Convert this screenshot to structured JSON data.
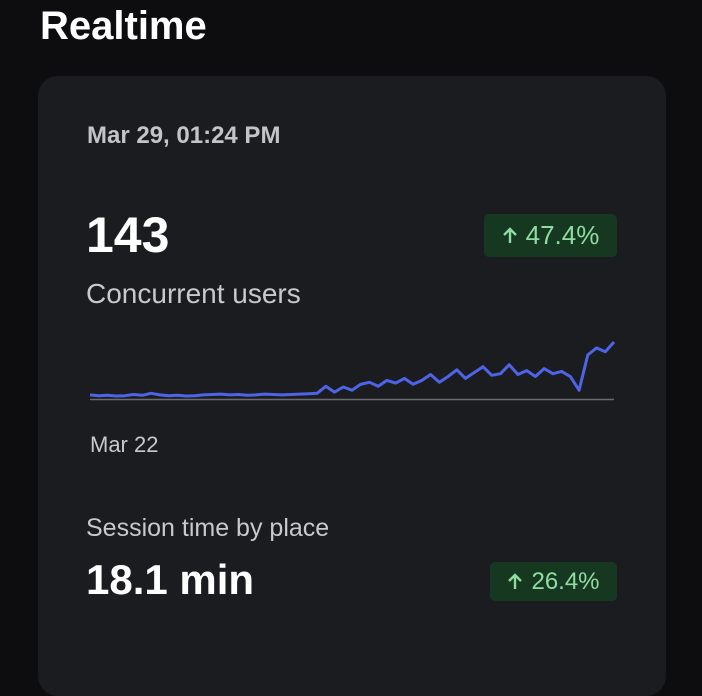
{
  "title": "Realtime",
  "card": {
    "timestamp": "Mar 29, 01:24 PM",
    "metrics": [
      {
        "value": "143",
        "label": "Concurrent users",
        "change": "47.4%"
      },
      {
        "value": "18.1 min",
        "label": "Session time by place",
        "change": "26.4%"
      }
    ]
  },
  "chart_data": {
    "type": "line",
    "color": "#4f63e6",
    "categories": [
      "Mar 22",
      null,
      null,
      null,
      null,
      null,
      null,
      null,
      null,
      null,
      null,
      null,
      null,
      null,
      null,
      null,
      null,
      null,
      null,
      null,
      null,
      null,
      null,
      null,
      null,
      null,
      null,
      null,
      null,
      null,
      null,
      null,
      null,
      null,
      null,
      null,
      null,
      null,
      null,
      null,
      null,
      null,
      null,
      null,
      null,
      null,
      null,
      null,
      null,
      null,
      null,
      null,
      null,
      null,
      null,
      null,
      null,
      null,
      null,
      null,
      null
    ],
    "values": [
      8,
      6,
      7,
      5,
      6,
      9,
      7,
      12,
      8,
      6,
      7,
      5,
      6,
      8,
      9,
      10,
      8,
      9,
      7,
      8,
      10,
      9,
      8,
      9,
      10,
      11,
      12,
      30,
      15,
      28,
      20,
      35,
      40,
      30,
      45,
      38,
      50,
      35,
      45,
      60,
      40,
      55,
      72,
      50,
      65,
      80,
      58,
      62,
      85,
      60,
      70,
      55,
      75,
      62,
      68,
      55,
      20,
      110,
      128,
      118,
      143
    ]
  }
}
